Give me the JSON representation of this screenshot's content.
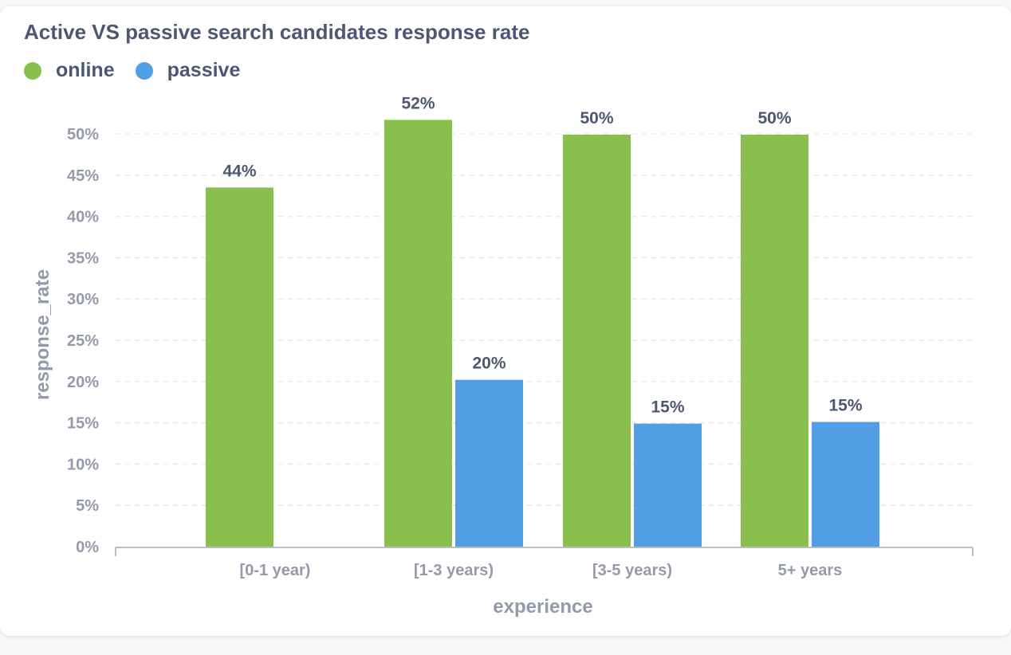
{
  "chart_data": {
    "type": "bar",
    "title": "Active VS passive search candidates response rate",
    "xlabel": "experience",
    "ylabel": "response_rate",
    "categories": [
      "[0-1 year)",
      "[1-3 years)",
      "[3-5 years)",
      "5+ years"
    ],
    "series": [
      {
        "name": "online",
        "color": "#88bf4d",
        "values": [
          43.5,
          51.7,
          49.9,
          49.9
        ],
        "labels": [
          "44%",
          "52%",
          "50%",
          "50%"
        ]
      },
      {
        "name": "passive",
        "color": "#509ee3",
        "values": [
          null,
          20.2,
          14.9,
          15.1
        ],
        "labels": [
          "",
          "20%",
          "15%",
          "15%"
        ]
      }
    ],
    "ylim": [
      0,
      50
    ],
    "yticks": [
      "0%",
      "5%",
      "10%",
      "15%",
      "20%",
      "25%",
      "30%",
      "35%",
      "40%",
      "45%",
      "50%"
    ],
    "grid": true,
    "legend_position": "top-left"
  }
}
